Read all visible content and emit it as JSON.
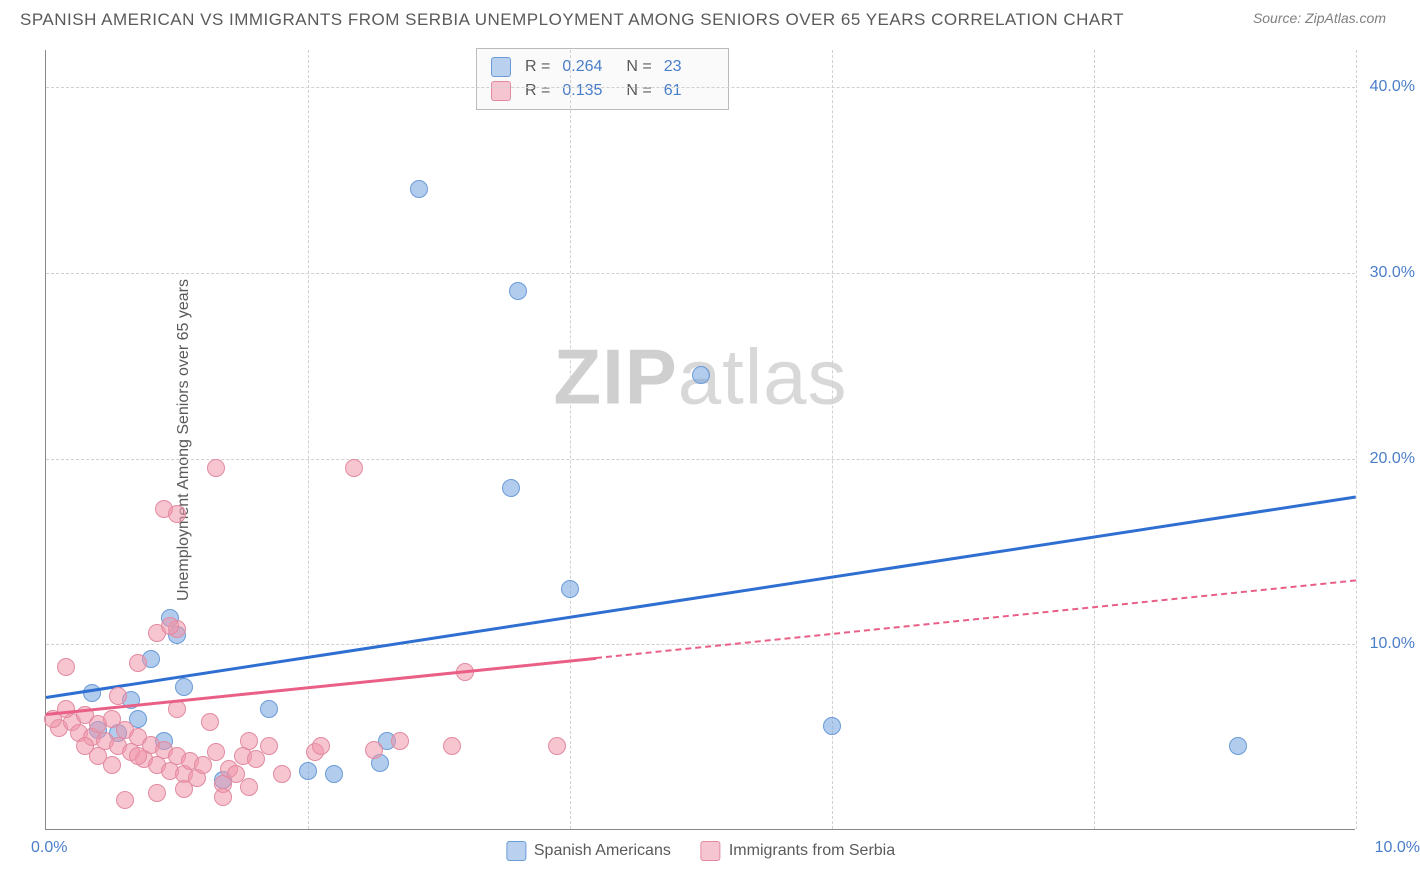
{
  "header": {
    "title": "SPANISH AMERICAN VS IMMIGRANTS FROM SERBIA UNEMPLOYMENT AMONG SENIORS OVER 65 YEARS CORRELATION CHART",
    "source": "Source: ZipAtlas.com"
  },
  "watermark": {
    "part1": "ZIP",
    "part2": "atlas"
  },
  "chart": {
    "type": "scatter",
    "ylabel": "Unemployment Among Seniors over 65 years",
    "xlim": [
      0,
      10
    ],
    "ylim": [
      0,
      42
    ],
    "xticks": [
      {
        "v": 0,
        "label": "0.0%"
      },
      {
        "v": 10,
        "label": "10.0%"
      }
    ],
    "yticks": [
      {
        "v": 10,
        "label": "10.0%"
      },
      {
        "v": 20,
        "label": "20.0%"
      },
      {
        "v": 30,
        "label": "30.0%"
      },
      {
        "v": 40,
        "label": "40.0%"
      }
    ],
    "xgrid": [
      2,
      4,
      6,
      8,
      10
    ],
    "background_color": "#ffffff",
    "grid_color": "#d0d0d0",
    "axis_label_color": "#4a7ec9",
    "marker_radius": 9,
    "marker_border_width": 1.5,
    "series": [
      {
        "name": "Spanish Americans",
        "color_fill": "rgba(114,162,222,0.55)",
        "color_stroke": "#6a9bd8",
        "swatch_fill": "#b9d1ef",
        "swatch_stroke": "#6a9bd8",
        "trend_color": "#2e6fd1",
        "trend": {
          "x1": 0,
          "y1": 7.2,
          "x2": 10,
          "y2": 18.0,
          "dash_from_x": 10
        },
        "R": "0.264",
        "N": "23",
        "points": [
          [
            2.85,
            34.5
          ],
          [
            3.6,
            29.0
          ],
          [
            5.0,
            24.5
          ],
          [
            3.55,
            18.4
          ],
          [
            4.0,
            13.0
          ],
          [
            0.95,
            11.4
          ],
          [
            0.8,
            9.2
          ],
          [
            1.05,
            7.7
          ],
          [
            1.7,
            6.5
          ],
          [
            2.0,
            3.2
          ],
          [
            2.2,
            3.0
          ],
          [
            2.55,
            3.6
          ],
          [
            2.6,
            4.8
          ],
          [
            1.35,
            2.7
          ],
          [
            0.35,
            7.4
          ],
          [
            0.4,
            5.4
          ],
          [
            0.55,
            5.2
          ],
          [
            6.0,
            5.6
          ],
          [
            9.1,
            4.5
          ],
          [
            0.7,
            6.0
          ],
          [
            1.0,
            10.5
          ],
          [
            0.9,
            4.8
          ],
          [
            0.65,
            7.0
          ]
        ]
      },
      {
        "name": "Immigrants from Serbia",
        "color_fill": "rgba(240,150,170,0.55)",
        "color_stroke": "#e28aa0",
        "swatch_fill": "#f5c6d2",
        "swatch_stroke": "#e28aa0",
        "trend_color": "#e95f86",
        "trend": {
          "x1": 0,
          "y1": 6.3,
          "x2": 10,
          "y2": 13.5,
          "dash_from_x": 4.2
        },
        "R": "0.135",
        "N": "61",
        "points": [
          [
            1.3,
            19.5
          ],
          [
            2.35,
            19.5
          ],
          [
            0.9,
            17.3
          ],
          [
            1.0,
            17.0
          ],
          [
            0.85,
            10.6
          ],
          [
            1.0,
            10.8
          ],
          [
            0.95,
            11.0
          ],
          [
            0.7,
            9.0
          ],
          [
            0.15,
            8.8
          ],
          [
            0.1,
            5.5
          ],
          [
            0.2,
            5.8
          ],
          [
            0.25,
            5.2
          ],
          [
            0.3,
            6.2
          ],
          [
            0.35,
            5.0
          ],
          [
            0.4,
            5.7
          ],
          [
            0.45,
            4.8
          ],
          [
            0.5,
            6.0
          ],
          [
            0.55,
            4.5
          ],
          [
            0.6,
            5.4
          ],
          [
            0.65,
            4.2
          ],
          [
            0.7,
            5.0
          ],
          [
            0.75,
            3.8
          ],
          [
            0.8,
            4.6
          ],
          [
            0.85,
            3.5
          ],
          [
            0.9,
            4.3
          ],
          [
            0.95,
            3.2
          ],
          [
            1.0,
            4.0
          ],
          [
            1.05,
            3.0
          ],
          [
            1.1,
            3.7
          ],
          [
            1.15,
            2.8
          ],
          [
            1.2,
            3.5
          ],
          [
            1.3,
            4.2
          ],
          [
            1.35,
            2.5
          ],
          [
            1.4,
            3.3
          ],
          [
            1.5,
            4.0
          ],
          [
            1.55,
            2.3
          ],
          [
            1.6,
            3.8
          ],
          [
            1.7,
            4.5
          ],
          [
            1.8,
            3.0
          ],
          [
            1.35,
            1.8
          ],
          [
            0.6,
            1.6
          ],
          [
            0.85,
            2.0
          ],
          [
            1.05,
            2.2
          ],
          [
            0.4,
            4.0
          ],
          [
            0.5,
            3.5
          ],
          [
            1.45,
            3.0
          ],
          [
            1.55,
            4.8
          ],
          [
            2.05,
            4.2
          ],
          [
            2.1,
            4.5
          ],
          [
            2.5,
            4.3
          ],
          [
            2.7,
            4.8
          ],
          [
            3.2,
            8.5
          ],
          [
            3.1,
            4.5
          ],
          [
            3.9,
            4.5
          ],
          [
            0.15,
            6.5
          ],
          [
            0.05,
            6.0
          ],
          [
            0.3,
            4.5
          ],
          [
            0.55,
            7.2
          ],
          [
            0.7,
            4.0
          ],
          [
            1.25,
            5.8
          ],
          [
            1.0,
            6.5
          ]
        ]
      }
    ]
  }
}
